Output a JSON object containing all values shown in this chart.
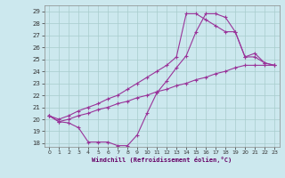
{
  "xlabel": "Windchill (Refroidissement éolien,°C)",
  "bg_color": "#cce8ee",
  "grid_color": "#a8cccc",
  "line_color": "#993399",
  "xlim": [
    -0.5,
    23.5
  ],
  "ylim": [
    17.7,
    29.5
  ],
  "xticks": [
    0,
    1,
    2,
    3,
    4,
    5,
    6,
    7,
    8,
    9,
    10,
    11,
    12,
    13,
    14,
    15,
    16,
    17,
    18,
    19,
    20,
    21,
    22,
    23
  ],
  "yticks": [
    18,
    19,
    20,
    21,
    22,
    23,
    24,
    25,
    26,
    27,
    28,
    29
  ],
  "line1_x": [
    0,
    1,
    2,
    3,
    4,
    5,
    6,
    7,
    8,
    9,
    10,
    11,
    12,
    13,
    14,
    15,
    16,
    17,
    18,
    19,
    20,
    21,
    22,
    23
  ],
  "line1_y": [
    20.3,
    19.8,
    19.7,
    19.3,
    18.1,
    18.1,
    18.1,
    17.8,
    17.8,
    18.7,
    20.5,
    22.2,
    23.2,
    24.3,
    25.3,
    27.3,
    28.8,
    28.8,
    28.5,
    27.3,
    25.2,
    25.2,
    24.7,
    24.5
  ],
  "line2_x": [
    0,
    1,
    2,
    3,
    4,
    5,
    6,
    7,
    8,
    9,
    10,
    11,
    12,
    13,
    14,
    15,
    16,
    17,
    18,
    19,
    20,
    21,
    22,
    23
  ],
  "line2_y": [
    20.3,
    19.8,
    20.0,
    20.3,
    20.5,
    20.8,
    21.0,
    21.3,
    21.5,
    21.8,
    22.0,
    22.3,
    22.5,
    22.8,
    23.0,
    23.3,
    23.5,
    23.8,
    24.0,
    24.3,
    24.5,
    24.5,
    24.5,
    24.5
  ],
  "line3_x": [
    0,
    1,
    2,
    3,
    4,
    5,
    6,
    7,
    8,
    9,
    10,
    11,
    12,
    13,
    14,
    15,
    16,
    17,
    18,
    19,
    20,
    21,
    22,
    23
  ],
  "line3_y": [
    20.3,
    20.0,
    20.3,
    20.7,
    21.0,
    21.3,
    21.7,
    22.0,
    22.5,
    23.0,
    23.5,
    24.0,
    24.5,
    25.2,
    28.8,
    28.8,
    28.3,
    27.8,
    27.3,
    27.3,
    25.2,
    25.5,
    24.7,
    24.5
  ]
}
